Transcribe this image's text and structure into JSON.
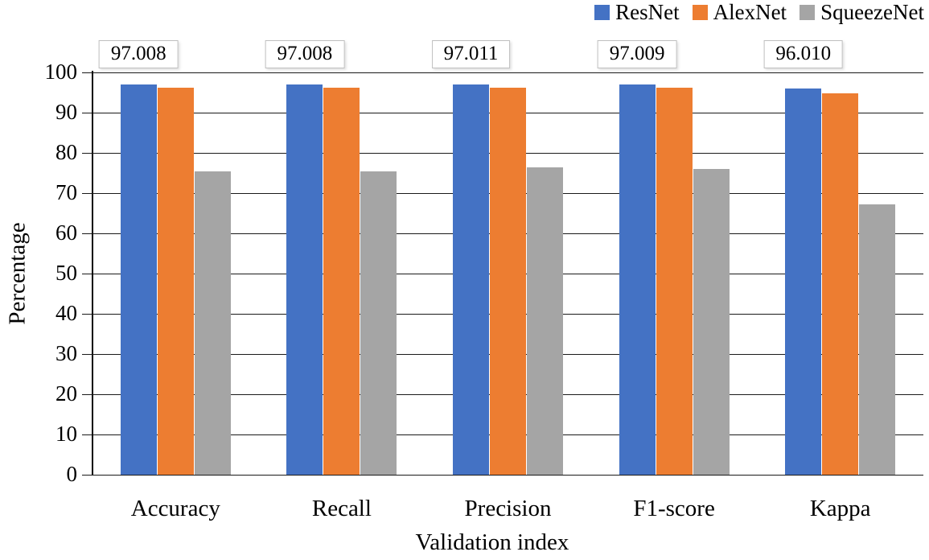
{
  "chart_data": {
    "type": "bar",
    "title": "",
    "categories": [
      "Accuracy",
      "Recall",
      "Precision",
      "F1-score",
      "Kappa"
    ],
    "series": [
      {
        "name": "ResNet",
        "color": "#4472C4",
        "values": [
          97.008,
          97.008,
          97.011,
          97.009,
          96.01
        ]
      },
      {
        "name": "AlexNet",
        "color": "#ED7D31",
        "values": [
          96.2,
          96.2,
          96.2,
          96.2,
          94.8
        ]
      },
      {
        "name": "SqueezeNet",
        "color": "#A5A5A5",
        "values": [
          75.5,
          75.5,
          76.5,
          76.0,
          67.3
        ]
      }
    ],
    "data_labels": [
      "97.008",
      "97.008",
      "97.011",
      "97.009",
      "96.010"
    ],
    "xlabel": "Validation index",
    "ylabel": "Percentage",
    "ylim": [
      0,
      100
    ],
    "ytick_step": 10,
    "yticks": [
      "0",
      "10",
      "20",
      "30",
      "40",
      "50",
      "60",
      "70",
      "80",
      "90",
      "100"
    ],
    "grid": true,
    "legend_position": "top-right",
    "colors": {
      "resnet": "#4472C4",
      "alexnet": "#ED7D31",
      "squeezenet": "#A5A5A5",
      "label_border": "#BFBFBF",
      "gridline": "#1A1A1A"
    }
  }
}
